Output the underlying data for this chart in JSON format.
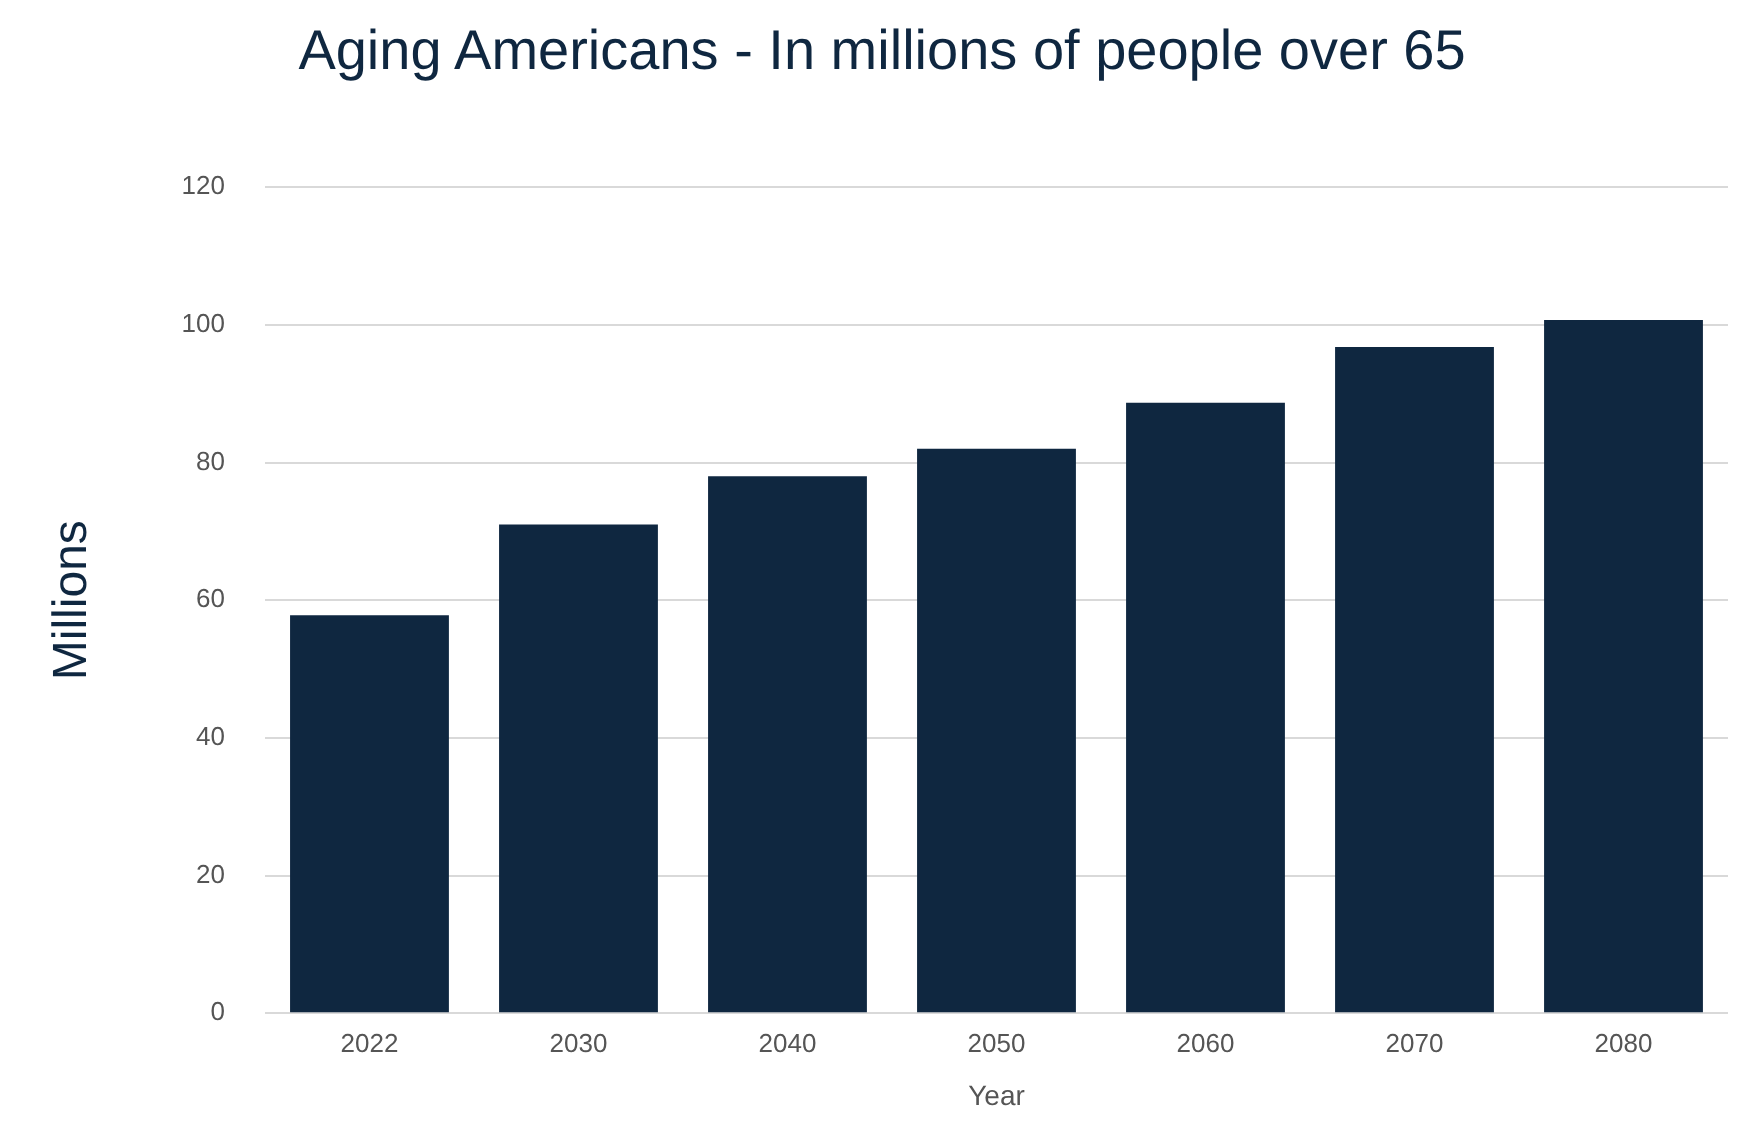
{
  "chart_data": {
    "type": "bar",
    "title": "Aging Americans - In millions of people over 65",
    "xlabel": "Year",
    "ylabel": "Millions",
    "categories": [
      "2022",
      "2030",
      "2040",
      "2050",
      "2060",
      "2070",
      "2080"
    ],
    "values": [
      57.8,
      71,
      78,
      82,
      88.7,
      96.8,
      100.7
    ],
    "color": "#0f2740",
    "ylim": [
      0,
      120
    ],
    "yticks": [
      0,
      20,
      40,
      60,
      80,
      100,
      120
    ],
    "grid": "y",
    "legend": false
  }
}
